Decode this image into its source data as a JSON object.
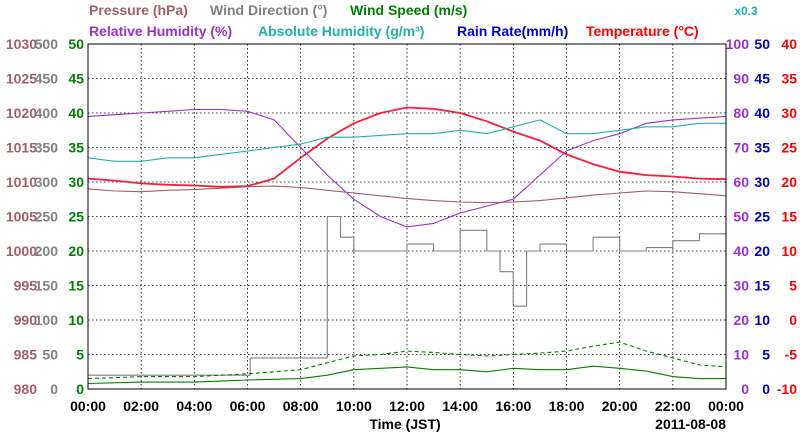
{
  "chart_data": {
    "type": "line",
    "date": "2011-08-08",
    "xlabel": "Time (JST)",
    "x_ticks": [
      "00:00",
      "02:00",
      "04:00",
      "06:00",
      "08:00",
      "10:00",
      "12:00",
      "14:00",
      "16:00",
      "18:00",
      "20:00",
      "22:00",
      "00:00"
    ],
    "x_range_hours": [
      0,
      24
    ],
    "grid": true,
    "legend": {
      "row1": [
        {
          "name": "Pressure (hPa)",
          "color": "#a0606a"
        },
        {
          "name": "Wind Direction (°)",
          "color": "#808080"
        },
        {
          "name": "Wind Speed (m/s)",
          "color": "#008000"
        }
      ],
      "row2": [
        {
          "name": "Relative Humidity (%)",
          "color": "#9932cc"
        },
        {
          "name": "Absolute Humidity (g/m³)",
          "color": "#20b2aa"
        },
        {
          "name": "Rain Rate(mm/h)",
          "color": "#0000cd"
        },
        {
          "name": "Temperature (°C)",
          "color": "#ff0000"
        }
      ]
    },
    "axes": {
      "pressure": {
        "color": "#a0606a",
        "range": [
          980,
          1030
        ],
        "ticks": [
          "1030",
          "1025",
          "1020",
          "1015",
          "1010",
          "1005",
          "1000",
          "995",
          "990",
          "985",
          "980"
        ]
      },
      "wind_direction": {
        "color": "#808080",
        "range": [
          0,
          500
        ],
        "ticks": [
          "500",
          "450",
          "400",
          "350",
          "300",
          "250",
          "200",
          "150",
          "100",
          "50",
          "0"
        ]
      },
      "wind_speed": {
        "color": "#008000",
        "range": [
          0,
          50
        ],
        "ticks": [
          "50",
          "45",
          "40",
          "35",
          "30",
          "25",
          "20",
          "15",
          "10",
          "5",
          "0"
        ]
      },
      "relative_humidity": {
        "color": "#9932cc",
        "range": [
          0,
          100
        ],
        "ticks": [
          "100",
          "90",
          "80",
          "70",
          "60",
          "50",
          "40",
          "30",
          "20",
          "10",
          "0"
        ]
      },
      "rain_rate": {
        "color": "#0000cd",
        "range": [
          0,
          50
        ],
        "ticks": [
          "50",
          "45",
          "40",
          "35",
          "30",
          "25",
          "20",
          "15",
          "10",
          "5",
          "0"
        ]
      },
      "temperature": {
        "color": "#ff0000",
        "range": [
          -10,
          40
        ],
        "ticks": [
          "40",
          "35",
          "30",
          "25",
          "20",
          "15",
          "10",
          "5",
          "0",
          "-5",
          "-10"
        ]
      },
      "absolute_humidity_scale": {
        "color": "#20b2aa",
        "label": "x0.3"
      }
    },
    "series": [
      {
        "name": "Temperature (°C)",
        "axis": "temperature",
        "x": [
          0,
          1,
          2,
          3,
          4,
          5,
          6,
          7,
          8,
          9,
          10,
          11,
          12,
          13,
          14,
          15,
          16,
          17,
          18,
          19,
          20,
          21,
          22,
          23,
          24
        ],
        "y": [
          20.5,
          20.2,
          19.8,
          19.6,
          19.5,
          19.3,
          19.4,
          20.5,
          23.5,
          26.3,
          28.5,
          30.0,
          30.8,
          30.6,
          30.0,
          28.8,
          27.3,
          26.0,
          24.0,
          22.6,
          21.5,
          21.0,
          20.8,
          20.5,
          20.4
        ]
      },
      {
        "name": "Relative Humidity (%)",
        "axis": "relative_humidity",
        "x": [
          0,
          1,
          2,
          3,
          4,
          5,
          6,
          7,
          8,
          9,
          10,
          11,
          12,
          13,
          14,
          15,
          16,
          17,
          18,
          19,
          20,
          21,
          22,
          23,
          24
        ],
        "y": [
          79,
          79.5,
          80,
          80.5,
          81,
          81,
          80.5,
          78,
          70,
          62,
          55,
          50,
          47,
          48,
          51,
          53,
          55,
          62,
          69,
          72,
          74,
          77,
          78,
          78.5,
          79
        ]
      },
      {
        "name": "Absolute Humidity (g/m³)",
        "axis": "relative_humidity",
        "x": [
          0,
          1,
          2,
          3,
          4,
          5,
          6,
          7,
          8,
          9,
          10,
          11,
          12,
          13,
          14,
          15,
          16,
          17,
          18,
          19,
          20,
          21,
          22,
          23,
          24
        ],
        "y": [
          67,
          66,
          66,
          67,
          67,
          68,
          69,
          70,
          71,
          73,
          73,
          73.5,
          74,
          74,
          75,
          74,
          76,
          78,
          74,
          74,
          75,
          76,
          76,
          77,
          77
        ]
      },
      {
        "name": "Pressure (hPa)",
        "axis": "pressure",
        "x": [
          0,
          1,
          2,
          3,
          4,
          5,
          6,
          7,
          8,
          9,
          10,
          11,
          12,
          13,
          14,
          15,
          16,
          17,
          18,
          19,
          20,
          21,
          22,
          23,
          24
        ],
        "y": [
          1009,
          1008.7,
          1008.6,
          1008.8,
          1008.9,
          1009.1,
          1009.3,
          1009.4,
          1009.2,
          1008.8,
          1008.4,
          1008.0,
          1007.6,
          1007.3,
          1007.1,
          1007.0,
          1007.1,
          1007.3,
          1007.7,
          1008.1,
          1008.4,
          1008.7,
          1008.6,
          1008.3,
          1008.0
        ]
      },
      {
        "name": "Wind Direction (°)",
        "axis": "wind_direction",
        "x": [
          0,
          1,
          2,
          3,
          4,
          5,
          6,
          6.1,
          7,
          8,
          8.9,
          9.0,
          9.5,
          10,
          11,
          12,
          13,
          14,
          15,
          15.5,
          16,
          16.5,
          17,
          18,
          19,
          20,
          21,
          22,
          23,
          24
        ],
        "y": [
          20,
          20,
          20,
          20,
          20,
          20,
          20,
          45,
          45,
          45,
          45,
          250,
          220,
          200,
          200,
          210,
          200,
          230,
          200,
          170,
          120,
          200,
          210,
          200,
          220,
          200,
          205,
          215,
          225,
          220
        ]
      },
      {
        "name": "Wind Speed (m/s)",
        "axis": "wind_speed",
        "x": [
          0,
          2,
          4,
          6,
          8,
          9,
          10,
          11,
          12,
          13,
          14,
          15,
          16,
          17,
          18,
          19,
          20,
          21,
          22,
          23,
          24
        ],
        "y": [
          0.8,
          1.0,
          1.0,
          1.3,
          1.5,
          2.0,
          2.8,
          3.0,
          3.2,
          2.8,
          2.8,
          2.5,
          3.0,
          2.8,
          2.8,
          3.3,
          3.0,
          2.6,
          1.8,
          1.5,
          1.5
        ]
      },
      {
        "name": "Wind Speed (m/s)",
        "axis": "wind_speed",
        "style": "dashed",
        "x": [
          0,
          2,
          4,
          6,
          8,
          9,
          10,
          11,
          12,
          13,
          14,
          15,
          16,
          17,
          18,
          19,
          20,
          21,
          22,
          23,
          24
        ],
        "y": [
          1.5,
          1.8,
          1.8,
          2.2,
          2.8,
          3.8,
          4.8,
          5.0,
          5.5,
          5.3,
          5.0,
          4.8,
          5.0,
          5.2,
          5.5,
          6.2,
          6.8,
          5.5,
          4.5,
          3.5,
          3.2
        ]
      }
    ]
  }
}
